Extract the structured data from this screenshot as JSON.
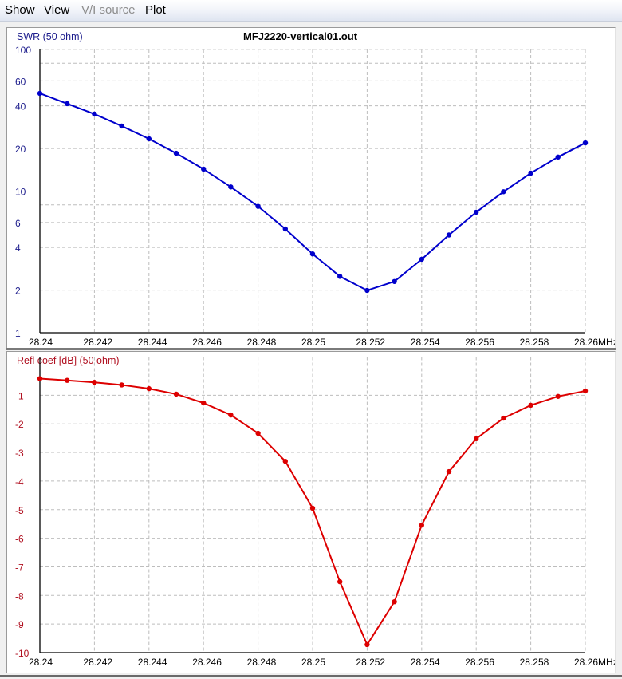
{
  "menu": {
    "items": [
      {
        "label": "Show",
        "enabled": true
      },
      {
        "label": "View",
        "enabled": true
      },
      {
        "label": "V/I source",
        "enabled": false
      },
      {
        "label": "Plot",
        "enabled": true
      }
    ]
  },
  "colors": {
    "swr_line": "#0000cc",
    "refl_line": "#dd0000",
    "swr_axis_text": "#1c1c8c",
    "refl_axis_text": "#b01020",
    "grid": "#bdbdbd"
  },
  "chart_data": [
    {
      "type": "line",
      "title": "MFJ2220-vertical01.out",
      "ylabel": "SWR (50 ohm)",
      "xlabel": "MHz",
      "yscale": "log",
      "ylim": [
        1,
        100
      ],
      "xlim": [
        28.24,
        28.26
      ],
      "grid": true,
      "yticks": [
        1,
        2,
        4,
        6,
        10,
        20,
        40,
        60,
        100
      ],
      "xticks": [
        "28.24",
        "28.242",
        "28.244",
        "28.246",
        "28.248",
        "28.25",
        "28.252",
        "28.254",
        "28.256",
        "28.258",
        "28.26"
      ],
      "x": [
        28.24,
        28.241,
        28.242,
        28.243,
        28.244,
        28.245,
        28.246,
        28.247,
        28.248,
        28.249,
        28.25,
        28.251,
        28.252,
        28.253,
        28.254,
        28.255,
        28.256,
        28.257,
        28.258,
        28.259,
        28.26
      ],
      "series": [
        {
          "name": "SWR",
          "color": "#0000cc",
          "values": [
            49,
            41.4,
            35,
            28.8,
            23.4,
            18.5,
            14.3,
            10.7,
            7.8,
            5.4,
            3.6,
            2.5,
            1.99,
            2.3,
            3.3,
            4.9,
            7.1,
            9.9,
            13.4,
            17.4,
            21.9
          ]
        }
      ]
    },
    {
      "type": "line",
      "title": "",
      "ylabel": "Refl coef [dB] (50 ohm)",
      "xlabel": "",
      "ylim": [
        -10,
        0
      ],
      "xlim": [
        28.24,
        28.26
      ],
      "grid": true,
      "yticks": [
        -1,
        -2,
        -3,
        -4,
        -5,
        -6,
        -7,
        -8,
        -9,
        -10
      ],
      "xticks": [
        "28.24",
        "28.242",
        "28.244",
        "28.246",
        "28.248",
        "28.25",
        "28.252",
        "28.254",
        "28.256",
        "28.258",
        "28.26"
      ],
      "x": [
        28.24,
        28.241,
        28.242,
        28.243,
        28.244,
        28.245,
        28.246,
        28.247,
        28.248,
        28.249,
        28.25,
        28.251,
        28.252,
        28.253,
        28.254,
        28.255,
        28.256,
        28.257,
        28.258,
        28.259,
        28.26
      ],
      "series": [
        {
          "name": "Refl coef",
          "color": "#dd0000",
          "values": [
            -0.42,
            -0.48,
            -0.55,
            -0.64,
            -0.77,
            -0.96,
            -1.27,
            -1.69,
            -2.33,
            -3.31,
            -4.95,
            -7.52,
            -9.72,
            -8.22,
            -5.54,
            -3.67,
            -2.52,
            -1.8,
            -1.35,
            -1.04,
            -0.85
          ]
        }
      ]
    }
  ],
  "top_plot": {
    "title": "MFJ2220-vertical01.out",
    "ylabel": "SWR (50 ohm)",
    "x_unit": "MHz",
    "last_xtick_with_unit": "28.26MHz"
  },
  "bottom_plot": {
    "ylabel": "Refl coef [dB] (50 ohm)",
    "x_unit": "MHz",
    "last_xtick_with_unit": "28.26MHz"
  }
}
